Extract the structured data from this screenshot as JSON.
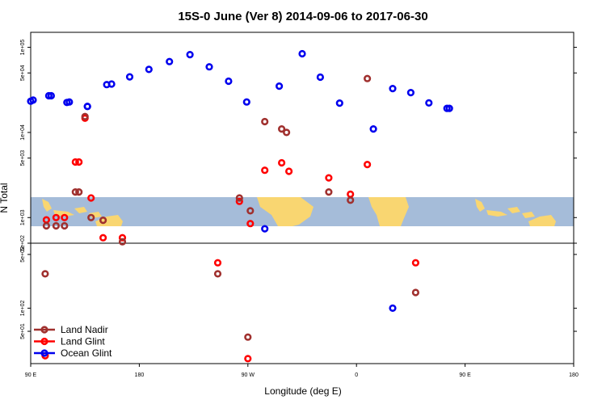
{
  "chart_data": {
    "type": "scatter",
    "title": "15S-0 June (Ver 8)   2014-09-06 to 2017-06-30",
    "xlabel": "Longitude (deg E)",
    "ylabel": "N Total",
    "x_ticks": [
      "90 E",
      "180",
      "90 W",
      "0",
      "90 E",
      "180"
    ],
    "y_ticks_upper": [
      "5e+02",
      "1e+03",
      "5e+03",
      "1e+04",
      "5e+04",
      "1e+05"
    ],
    "y_ticks_lower": [
      "5e+01",
      "1e+02",
      "5e+02"
    ],
    "background_map": "world land/ocean map band (tropics)",
    "colors": {
      "land_nadir": "#a0302e",
      "land_glint": "#ff0000",
      "ocean_glint": "#0000ee",
      "ocean": "#a5bcd9",
      "land": "#f9d671"
    },
    "series": [
      {
        "name": "Ocean Glint",
        "color": "#0000ee",
        "panel": "upper",
        "points": [
          [
            75,
            19200
          ],
          [
            90,
            23300
          ],
          [
            105,
            27000
          ],
          [
            120,
            22500
          ],
          [
            137,
            20200
          ],
          [
            157,
            37000
          ],
          [
            172,
            45000
          ],
          [
            188,
            55000
          ],
          [
            205,
            68000
          ],
          [
            222,
            82000
          ],
          [
            238,
            59000
          ],
          [
            254,
            40000
          ],
          [
            269,
            22800
          ],
          [
            -76,
            740
          ],
          [
            -64,
            35000
          ],
          [
            -45,
            84000
          ],
          [
            -30,
            44600
          ],
          [
            -14,
            22100
          ],
          [
            14,
            11000
          ],
          [
            30,
            32800
          ],
          [
            45,
            29400
          ],
          [
            60,
            22200
          ],
          [
            77,
            19200
          ],
          [
            92,
            24000
          ],
          [
            107,
            27000
          ],
          [
            122,
            22800
          ],
          [
            137,
            20200
          ],
          [
            153,
            36500
          ]
        ]
      },
      {
        "name": "Land Glint",
        "color": "#ff0000",
        "panel": "upper",
        "points": [
          [
            103,
            940
          ],
          [
            118,
            1000
          ],
          [
            130,
            4500
          ],
          [
            140,
            1700
          ],
          [
            166,
            580
          ],
          [
            -97,
            1550
          ],
          [
            -88,
            850
          ],
          [
            -76,
            3600
          ],
          [
            -62,
            4400
          ],
          [
            -56,
            3500
          ],
          [
            -23,
            2930
          ],
          [
            -5,
            1880
          ],
          [
            9,
            4200
          ],
          [
            111,
            1000
          ],
          [
            127,
            4500
          ],
          [
            135,
            14700
          ],
          [
            150,
            580
          ]
        ]
      },
      {
        "name": "Land Nadir",
        "color": "#a0302e",
        "panel": "upper",
        "points": [
          [
            103,
            800
          ],
          [
            118,
            800
          ],
          [
            130,
            2000
          ],
          [
            140,
            1000
          ],
          [
            166,
            520
          ],
          [
            -97,
            1700
          ],
          [
            -88,
            1200
          ],
          [
            -76,
            13400
          ],
          [
            -62,
            11000
          ],
          [
            -58,
            10000
          ],
          [
            -23,
            2000
          ],
          [
            -5,
            1600
          ],
          [
            9,
            43000
          ],
          [
            111,
            800
          ],
          [
            127,
            2000
          ],
          [
            135,
            15400
          ],
          [
            150,
            930
          ]
        ]
      },
      {
        "name": "Land Glint",
        "color": "#ff0000",
        "panel": "lower",
        "points": [
          [
            -115,
            390
          ],
          [
            -90,
            22
          ],
          [
            49,
            390
          ],
          [
            102,
            24
          ]
        ]
      },
      {
        "name": "Land Nadir",
        "color": "#a0302e",
        "panel": "lower",
        "points": [
          [
            -115,
            280
          ],
          [
            -90,
            42
          ],
          [
            49,
            160
          ],
          [
            102,
            280
          ]
        ]
      },
      {
        "name": "Ocean Glint",
        "color": "#0000ee",
        "panel": "lower",
        "points": [
          [
            30,
            100
          ]
        ]
      }
    ],
    "legend": {
      "placement": "bottom-left",
      "entries": [
        {
          "label": "Land Nadir",
          "color": "#a0302e"
        },
        {
          "label": "Land Glint",
          "color": "#ff0000"
        },
        {
          "label": "Ocean Glint",
          "color": "#0000ee"
        }
      ]
    }
  }
}
